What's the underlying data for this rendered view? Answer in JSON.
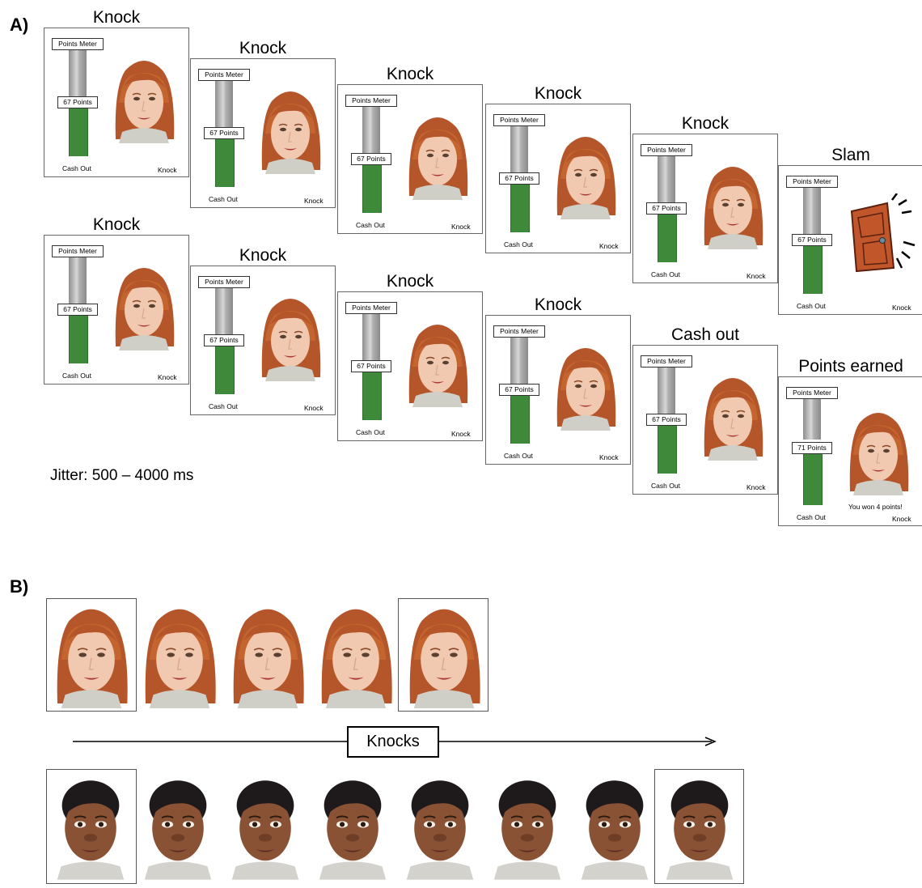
{
  "panel_a": {
    "label": "A)",
    "jitter": "Jitter: 500 – 4000 ms",
    "meter_label": "Points Meter",
    "cash_label": "Cash Out",
    "knock_label": "Knock",
    "top_row": [
      {
        "title": "Knock",
        "points": "67 Points"
      },
      {
        "title": "Knock",
        "points": "67 Points"
      },
      {
        "title": "Knock",
        "points": "67 Points"
      },
      {
        "title": "Knock",
        "points": "67 Points"
      },
      {
        "title": "Knock",
        "points": "67 Points"
      },
      {
        "title": "Slam",
        "points": "67 Points"
      }
    ],
    "bottom_row": [
      {
        "title": "Knock",
        "points": "67 Points"
      },
      {
        "title": "Knock",
        "points": "67 Points"
      },
      {
        "title": "Knock",
        "points": "67 Points"
      },
      {
        "title": "Knock",
        "points": "67 Points"
      },
      {
        "title": "Cash out",
        "points": "67 Points"
      },
      {
        "title": "Points earned",
        "points": "71 Points",
        "message": "You won 4 points!"
      }
    ]
  },
  "panel_b": {
    "label": "B)",
    "axis_label": "Knocks",
    "strip1_count": 5,
    "strip2_count": 8
  },
  "colors": {
    "meter_green": "#3f8a3a",
    "hair_red": "#b5552a",
    "skin_light": "#f1c8b0",
    "hair_dark": "#1e1a1c",
    "skin_dark": "#8a5234",
    "door": "#c0562a"
  }
}
